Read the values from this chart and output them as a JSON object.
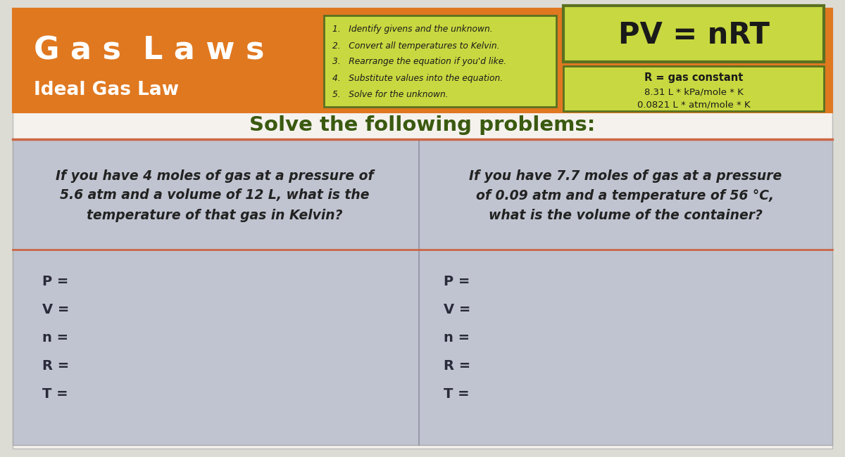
{
  "outer_bg": "#dcdcd4",
  "inner_bg": "#f5f2ee",
  "header_bg": "#e07820",
  "header_title": "G a s  L a w s",
  "header_subtitle": "Ideal Gas Law",
  "header_title_color": "#ffffff",
  "header_subtitle_color": "#ffffff",
  "steps_bg": "#c8d840",
  "steps_border": "#5a7020",
  "steps": [
    "1.   Identify givens and the unknown.",
    "2.   Convert all temperatures to Kelvin.",
    "3.   Rearrange the equation if you'd like.",
    "4.   Substitute values into the equation.",
    "5.   Solve for the unknown."
  ],
  "formula_bg": "#c8d840",
  "formula_border": "#5a7020",
  "formula_text": "PV = nRT",
  "r_box_bg": "#c8d840",
  "r_box_border": "#5a7020",
  "r_constant_label": "R = gas constant",
  "r_value1": "8.31 L * kPa/mole * K",
  "r_value2": "0.0821 L * atm/mole * K",
  "solve_title": "Solve the following problems:",
  "solve_title_color": "#3a5a10",
  "divider_color": "#cc6644",
  "problem_area_bg": "#c0c4d0",
  "problem1_text": "If you have 4 moles of gas at a pressure of\n5.6 atm and a volume of 12 L, what is the\ntemperature of that gas in Kelvin?",
  "problem2_text": "If you have 7.7 moles of gas at a pressure\nof 0.09 atm and a temperature of 56 °C,\nwhat is the volume of the container?",
  "problem_text_color": "#222222",
  "vars_left": [
    "P =",
    "V =",
    "n =",
    "R =",
    "T ="
  ],
  "vars_right": [
    "P =",
    "V =",
    "n =",
    "R =",
    "T ="
  ],
  "vars_color": "#2a2a3a"
}
